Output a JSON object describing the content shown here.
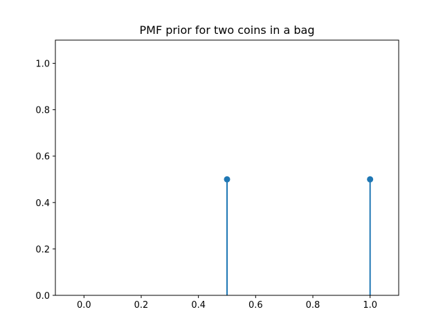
{
  "chart_data": {
    "type": "stem",
    "title": "PMF prior for two coins in a bag",
    "xlabel": "",
    "ylabel": "",
    "x": [
      0.5,
      1.0
    ],
    "y": [
      0.5,
      0.5
    ],
    "xlim": [
      -0.1,
      1.1
    ],
    "ylim": [
      0.0,
      1.1
    ],
    "xticks": [
      0.0,
      0.2,
      0.4,
      0.6,
      0.8,
      1.0
    ],
    "xtick_labels": [
      "0.0",
      "0.2",
      "0.4",
      "0.6",
      "0.8",
      "1.0"
    ],
    "yticks": [
      0.0,
      0.2,
      0.4,
      0.6,
      0.8,
      1.0
    ],
    "ytick_labels": [
      "0.0",
      "0.2",
      "0.4",
      "0.6",
      "0.8",
      "1.0"
    ],
    "grid": false,
    "legend": "none",
    "color": "#1f77b4"
  }
}
